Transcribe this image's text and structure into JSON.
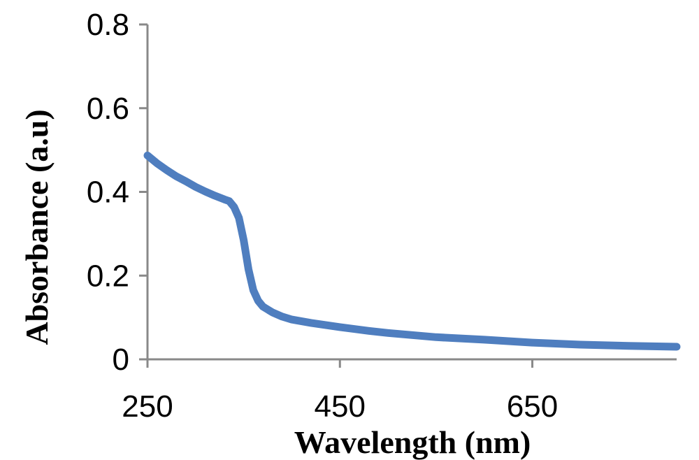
{
  "chart_data": {
    "type": "line",
    "title": "",
    "xlabel": "Wavelength (nm)",
    "ylabel": "Absorbance (a.u)",
    "xlim": [
      250,
      800
    ],
    "ylim": [
      0,
      0.8
    ],
    "xticks": [
      250,
      450,
      650
    ],
    "xtick_labels": [
      "250",
      "450",
      "650"
    ],
    "yticks": [
      0,
      0.2,
      0.4,
      0.6,
      0.8
    ],
    "ytick_labels": [
      "0",
      "0.2",
      "0.4",
      "0.6",
      "0.8"
    ],
    "grid": false,
    "series_color": "#4F7EBF",
    "series": [
      {
        "x": [
          250,
          260,
          270,
          280,
          290,
          300,
          310,
          320,
          330,
          335,
          340,
          345,
          350,
          355,
          360,
          365,
          370,
          380,
          390,
          400,
          420,
          450,
          480,
          500,
          550,
          600,
          650,
          700,
          750,
          800
        ],
        "y": [
          0.487,
          0.468,
          0.452,
          0.437,
          0.425,
          0.412,
          0.401,
          0.391,
          0.382,
          0.378,
          0.364,
          0.338,
          0.285,
          0.215,
          0.165,
          0.14,
          0.126,
          0.112,
          0.102,
          0.095,
          0.087,
          0.077,
          0.068,
          0.063,
          0.053,
          0.047,
          0.04,
          0.035,
          0.032,
          0.03
        ]
      }
    ]
  }
}
